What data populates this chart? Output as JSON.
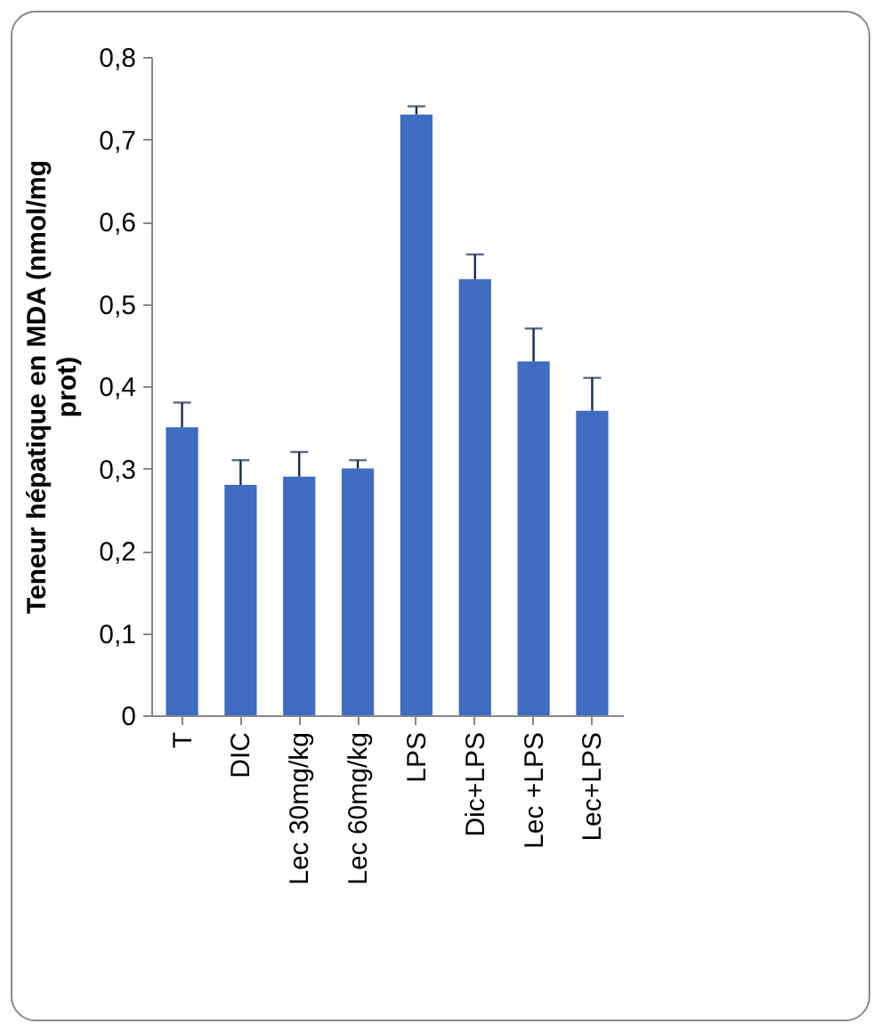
{
  "chart_data": {
    "type": "bar",
    "ylabel": "Teneur hépatique en MDA (nmol/mg prot)",
    "categories": [
      "T",
      "DIC",
      "Lec 30mg/kg",
      "Lec 60mg/kg",
      "LPS",
      "Dic+LPS",
      "Lec +LPS",
      "Lec+LPS"
    ],
    "values": [
      0.35,
      0.28,
      0.29,
      0.3,
      0.73,
      0.53,
      0.43,
      0.37
    ],
    "errors": [
      [
        0.35,
        0.38
      ],
      [
        0.28,
        0.31
      ],
      [
        0.29,
        0.32
      ],
      [
        0.3,
        0.31
      ],
      [
        0.73,
        0.74
      ],
      [
        0.53,
        0.56
      ],
      [
        0.43,
        0.47
      ],
      [
        0.37,
        0.41
      ]
    ],
    "color": "#3d6cc0",
    "ylim": [
      0,
      0.8
    ],
    "yticks": [
      0,
      {
        "value": 0.1,
        "label": "0,1"
      },
      {
        "value": 0.2,
        "label": "0,2"
      },
      {
        "value": 0.3,
        "label": "0,3"
      },
      {
        "value": 0.4,
        "label": "0,4"
      },
      {
        "value": 0.5,
        "label": "0,5"
      },
      {
        "value": 0.6,
        "label": "0,6"
      },
      {
        "value": 0.7,
        "label": "0,7"
      },
      {
        "value": 0.8,
        "label": "0,8"
      }
    ],
    "grid": false
  }
}
